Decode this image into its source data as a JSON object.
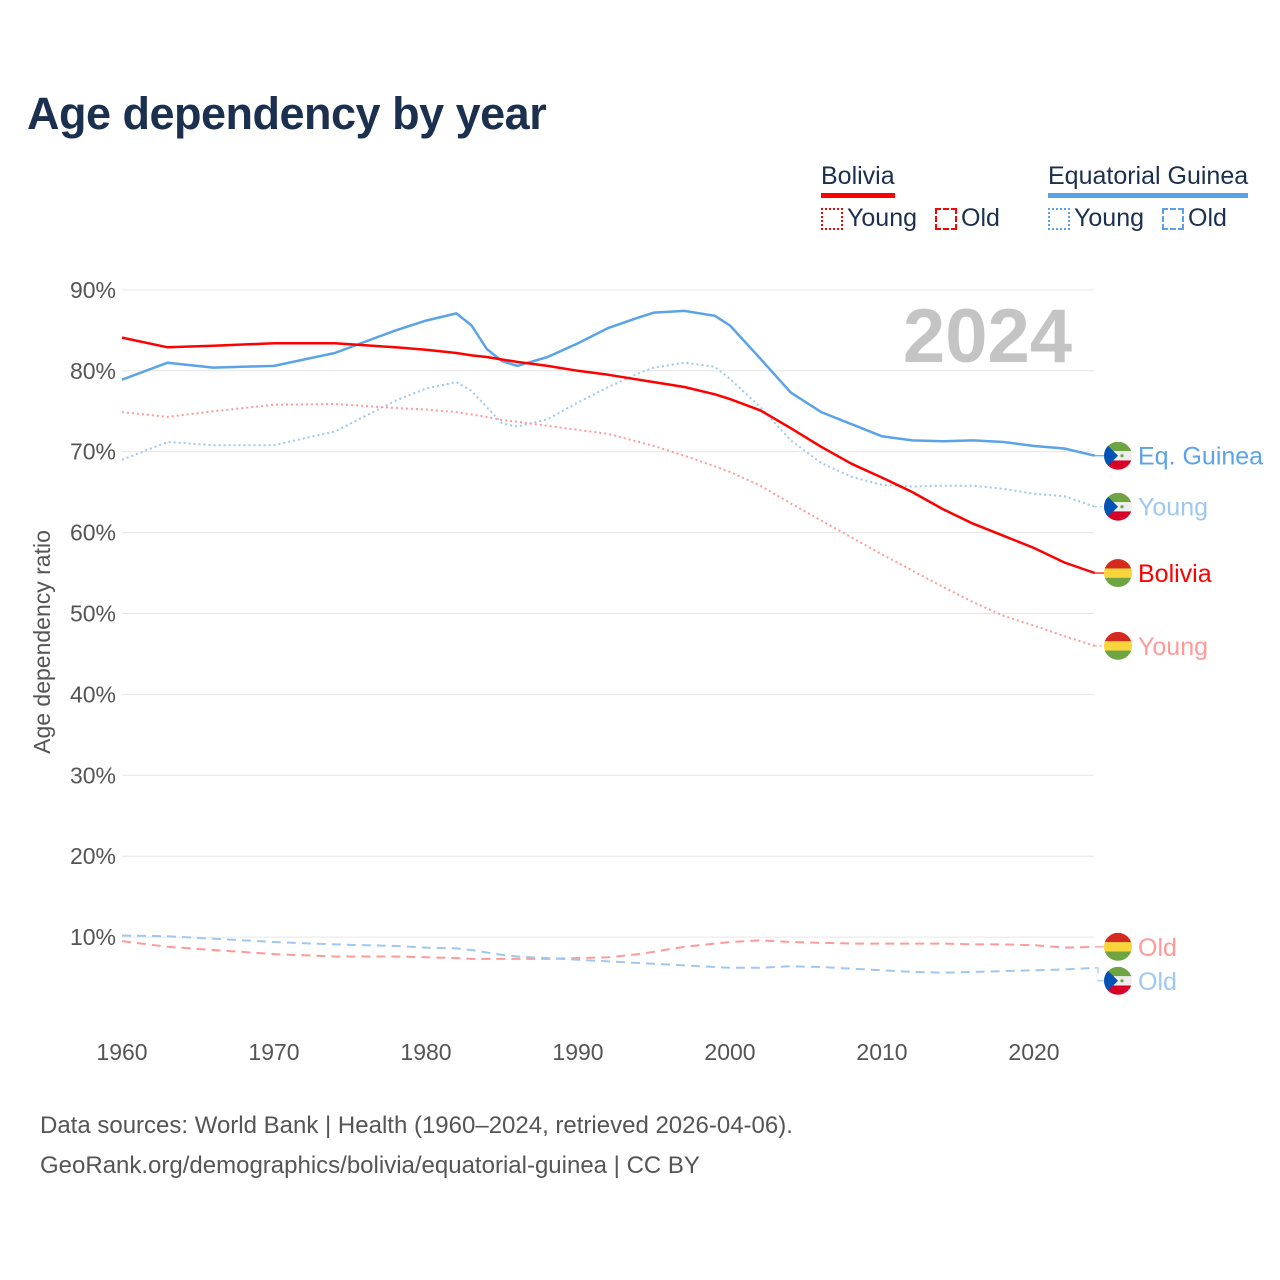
{
  "title": "Age dependency by year",
  "legend": {
    "groups": [
      {
        "name": "Bolivia",
        "color": "#ff0000",
        "items": [
          "Young",
          "Old"
        ]
      },
      {
        "name": "Equatorial Guinea",
        "color": "#5ba3e8",
        "items": [
          "Young",
          "Old"
        ]
      }
    ]
  },
  "year_badge": "2024",
  "footer": {
    "line1": "Data sources: World Bank | Health (1960–2024, retrieved 2026-04-06).",
    "line2": "GeoRank.org/demographics/bolivia/equatorial-guinea | CC BY"
  },
  "chart_data": {
    "type": "line",
    "title": "Age dependency by year",
    "xlabel": "",
    "ylabel": "Age dependency ratio",
    "xlim": [
      1960,
      2024
    ],
    "ylim": [
      0,
      90
    ],
    "x_ticks": [
      "1960",
      "1970",
      "1980",
      "1990",
      "2000",
      "2010",
      "2020"
    ],
    "y_ticks": [
      "10%",
      "20%",
      "30%",
      "40%",
      "50%",
      "60%",
      "70%",
      "80%",
      "90%"
    ],
    "grid": true,
    "x": [
      1960,
      1963,
      1966,
      1970,
      1974,
      1978,
      1980,
      1982,
      1983,
      1984,
      1985,
      1986,
      1988,
      1990,
      1992,
      1994,
      1995,
      1997,
      1999,
      2000,
      2002,
      2004,
      2006,
      2008,
      2010,
      2012,
      2014,
      2016,
      2018,
      2020,
      2022,
      2024
    ],
    "series": [
      {
        "name": "Eq. Guinea",
        "country": "Equatorial Guinea",
        "kind": "total",
        "color": "#5ba3e8",
        "style": "solid",
        "values": [
          78.9,
          81.0,
          80.4,
          80.6,
          82.2,
          85.0,
          86.2,
          87.1,
          85.6,
          82.7,
          81.2,
          80.6,
          81.7,
          83.4,
          85.3,
          86.6,
          87.2,
          87.4,
          86.8,
          85.6,
          81.5,
          77.3,
          74.9,
          73.4,
          71.9,
          71.4,
          71.3,
          71.4,
          71.2,
          70.7,
          70.4,
          69.5
        ]
      },
      {
        "name": "Young",
        "country": "Equatorial Guinea",
        "kind": "young",
        "color": "#9ec8f0",
        "style": "dotted",
        "values": [
          69.0,
          71.2,
          70.8,
          70.8,
          72.5,
          76.3,
          77.8,
          78.6,
          77.5,
          75.5,
          73.5,
          73.1,
          74.0,
          76.1,
          78.0,
          79.7,
          80.4,
          81.0,
          80.5,
          79.0,
          75.5,
          71.4,
          68.6,
          66.9,
          65.9,
          65.7,
          65.8,
          65.8,
          65.4,
          64.8,
          64.5,
          63.2
        ]
      },
      {
        "name": "Bolivia",
        "country": "Bolivia",
        "kind": "total",
        "color": "#ff0000",
        "style": "solid",
        "values": [
          84.1,
          82.9,
          83.1,
          83.4,
          83.4,
          82.9,
          82.6,
          82.2,
          81.9,
          81.7,
          81.4,
          81.1,
          80.6,
          80.0,
          79.5,
          78.9,
          78.6,
          78.0,
          77.1,
          76.5,
          75.1,
          72.9,
          70.6,
          68.5,
          66.8,
          65.0,
          62.9,
          61.1,
          59.6,
          58.1,
          56.3,
          55.0
        ]
      },
      {
        "name": "Young",
        "country": "Bolivia",
        "kind": "young",
        "color": "#ff9a9a",
        "style": "dotted",
        "values": [
          74.9,
          74.3,
          75.0,
          75.8,
          75.9,
          75.4,
          75.2,
          74.9,
          74.6,
          74.3,
          73.9,
          73.7,
          73.2,
          72.7,
          72.2,
          71.2,
          70.7,
          69.5,
          68.2,
          67.5,
          65.8,
          63.6,
          61.5,
          59.4,
          57.3,
          55.3,
          53.3,
          51.4,
          49.7,
          48.5,
          47.2,
          46.0
        ]
      },
      {
        "name": "Old",
        "country": "Bolivia",
        "kind": "old",
        "color": "#ff9a9a",
        "style": "dashed",
        "values": [
          9.5,
          8.8,
          8.4,
          7.9,
          7.6,
          7.6,
          7.5,
          7.4,
          7.3,
          7.3,
          7.3,
          7.3,
          7.3,
          7.4,
          7.5,
          7.9,
          8.2,
          8.8,
          9.2,
          9.4,
          9.6,
          9.4,
          9.3,
          9.2,
          9.2,
          9.2,
          9.2,
          9.1,
          9.1,
          9.0,
          8.7,
          8.8
        ]
      },
      {
        "name": "Old",
        "country": "Equatorial Guinea",
        "kind": "old",
        "color": "#9ec8f0",
        "style": "dashed",
        "values": [
          10.2,
          10.1,
          9.8,
          9.4,
          9.1,
          8.9,
          8.7,
          8.6,
          8.4,
          8.1,
          7.8,
          7.6,
          7.4,
          7.2,
          7.0,
          6.8,
          6.7,
          6.5,
          6.3,
          6.2,
          6.2,
          6.4,
          6.3,
          6.1,
          5.9,
          5.7,
          5.6,
          5.7,
          5.8,
          5.9,
          6.0,
          6.2
        ]
      }
    ]
  }
}
